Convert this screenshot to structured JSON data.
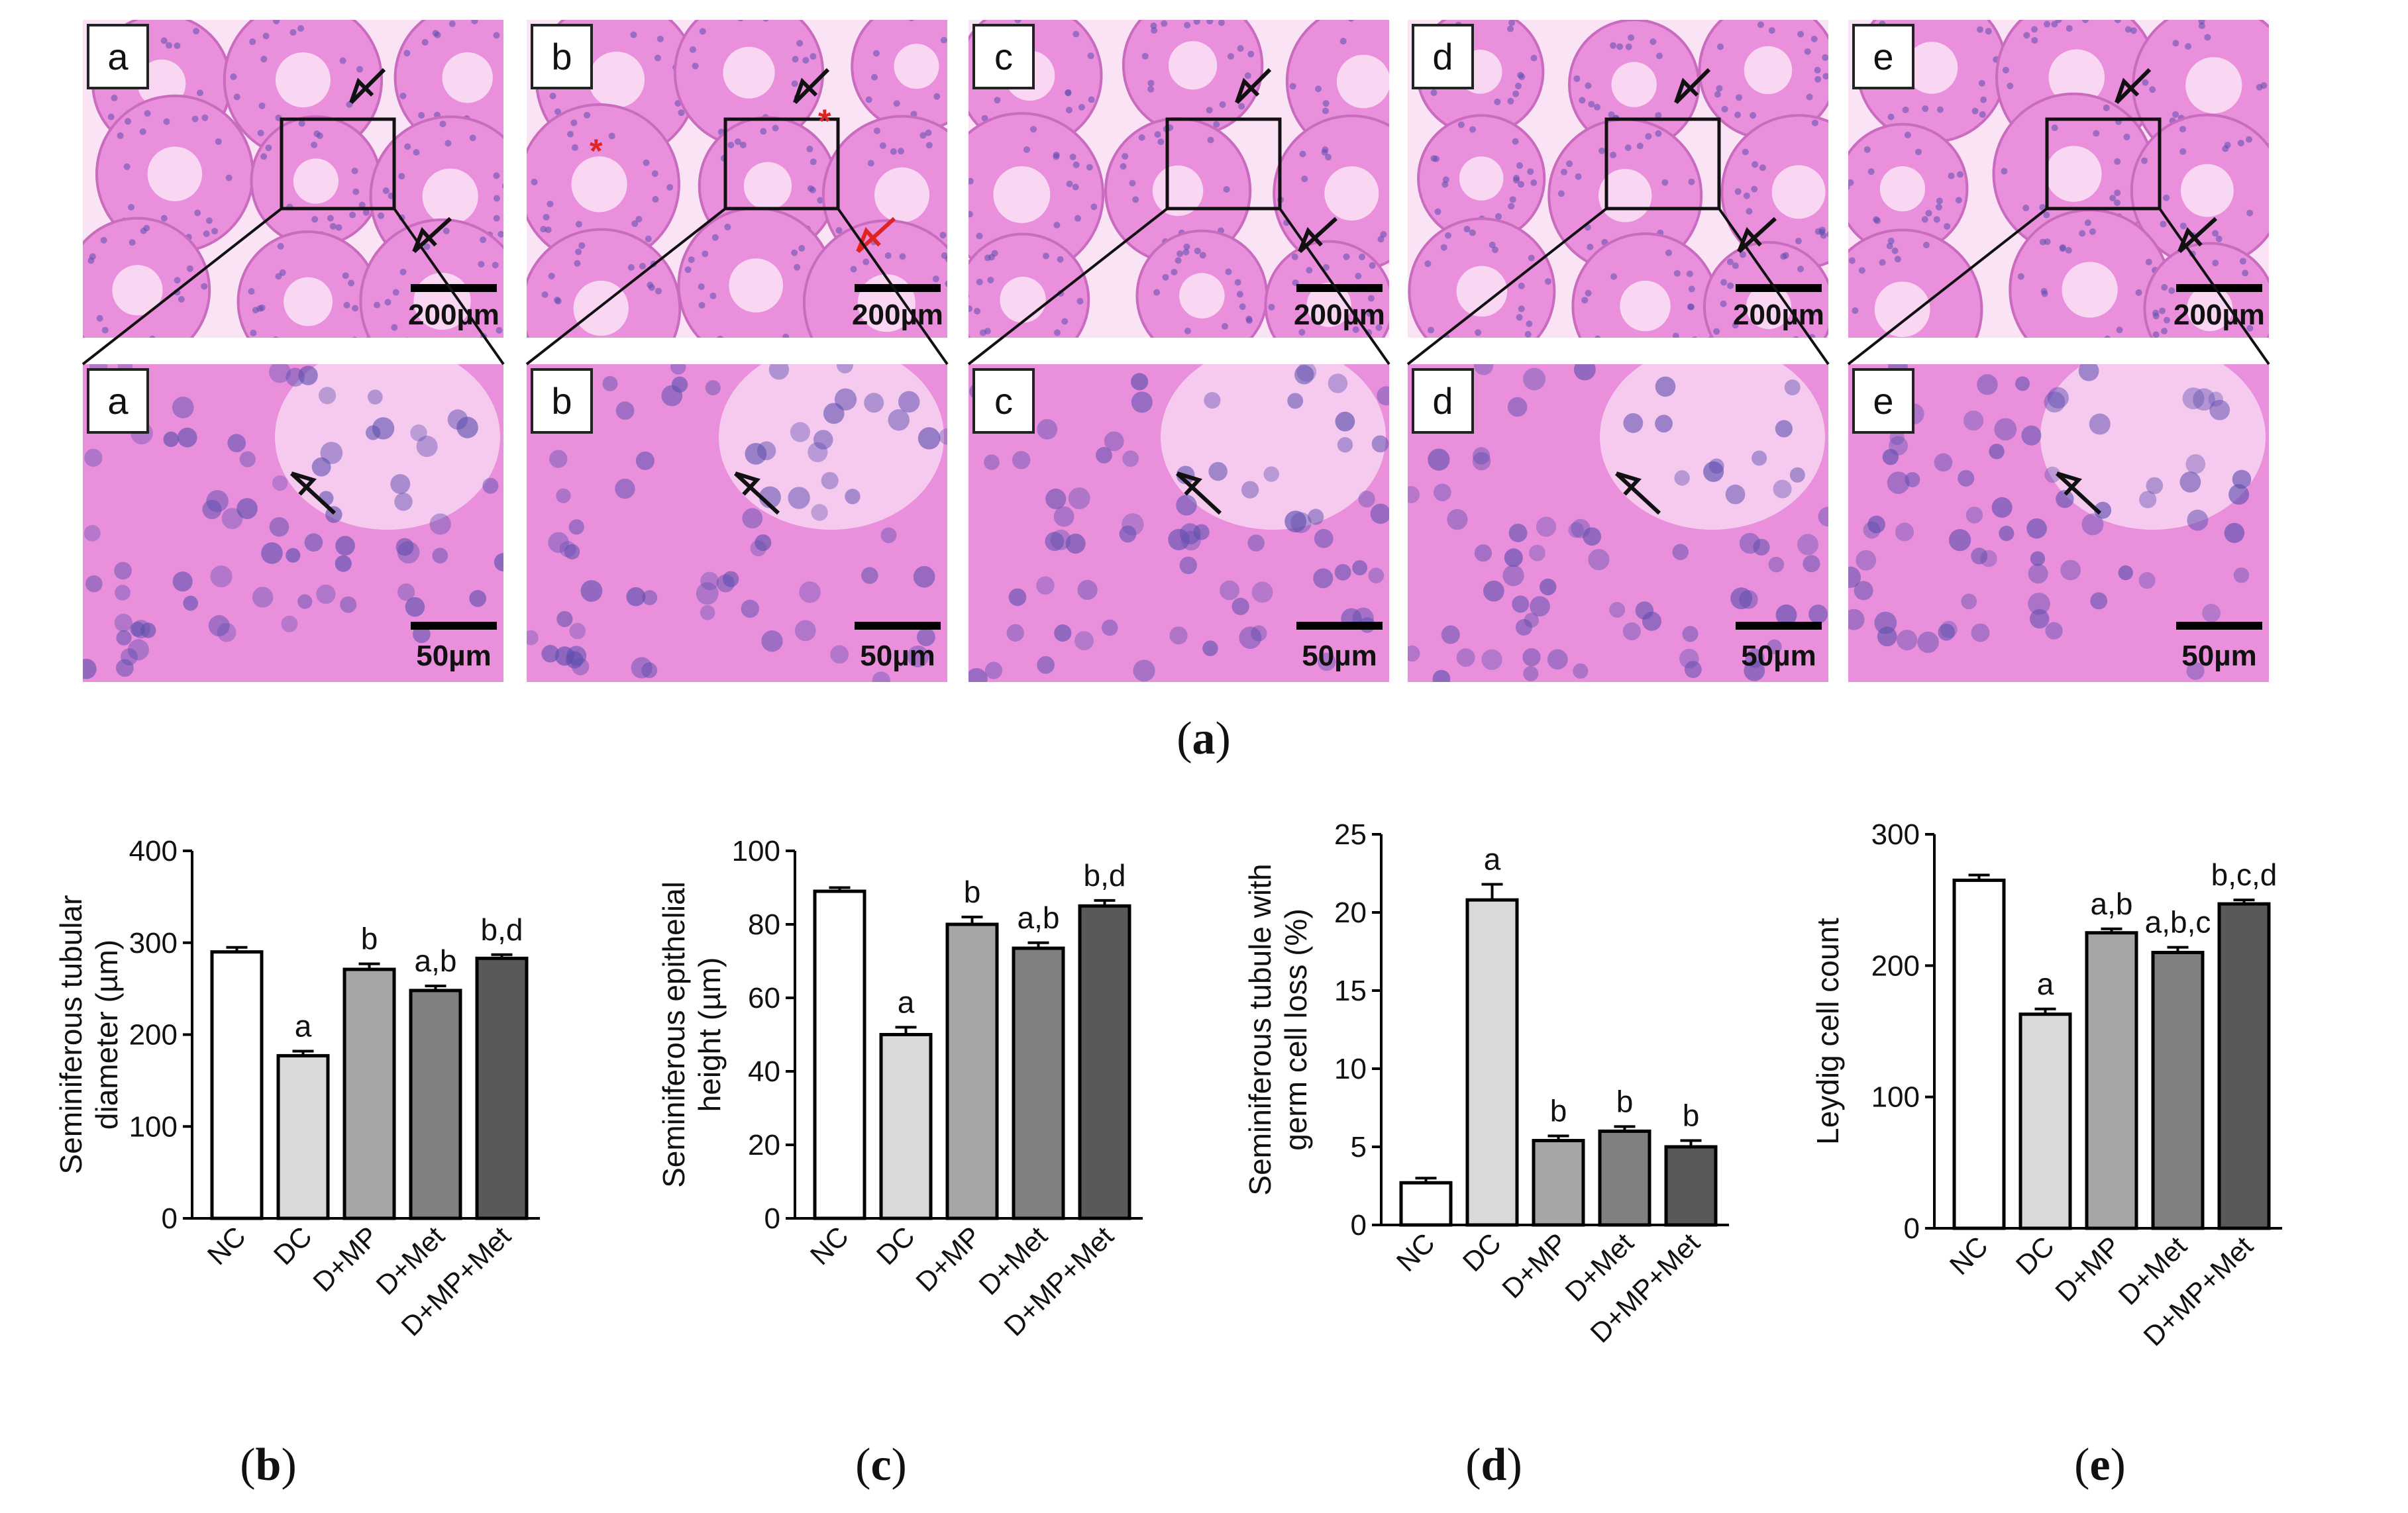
{
  "histology": {
    "panel_label": "a",
    "columns": [
      {
        "letter": "a",
        "scale_top": "200µm",
        "scale_bottom": "50µm",
        "red_markers": false
      },
      {
        "letter": "b",
        "scale_top": "200µm",
        "scale_bottom": "50µm",
        "red_markers": true
      },
      {
        "letter": "c",
        "scale_top": "200µm",
        "scale_bottom": "50µm",
        "red_markers": false
      },
      {
        "letter": "d",
        "scale_top": "200µm",
        "scale_bottom": "50µm",
        "red_markers": false
      },
      {
        "letter": "e",
        "scale_top": "200µm",
        "scale_bottom": "50µm",
        "red_markers": false
      }
    ],
    "colors": {
      "tissue": "#e98fdc",
      "lumen": "#fbe3f6",
      "nuclei": "#5d4fae",
      "arrow": "#111111",
      "red_arrow": "#e02424"
    }
  },
  "chart_data": [
    {
      "type": "bar",
      "panel": "b",
      "ylabel": [
        "Seminiferous tubular",
        "diameter (µm)"
      ],
      "categories": [
        "NC",
        "DC",
        "D+MP",
        "D+Met",
        "D+MP+Met"
      ],
      "values": [
        290,
        177,
        271,
        248,
        283
      ],
      "errors": [
        5,
        5,
        6,
        5,
        4
      ],
      "annotations": [
        "",
        "a",
        "b",
        "a,b",
        "b,d"
      ],
      "ylim": [
        0,
        400
      ],
      "yticks": [
        0,
        100,
        200,
        300,
        400
      ],
      "colors": [
        "#ffffff",
        "#d9d9d9",
        "#a6a6a6",
        "#808080",
        "#595959"
      ]
    },
    {
      "type": "bar",
      "panel": "c",
      "ylabel": [
        "Seminiferous epithelial",
        "height (µm)"
      ],
      "categories": [
        "NC",
        "DC",
        "D+MP",
        "D+Met",
        "D+MP+Met"
      ],
      "values": [
        89,
        50,
        80,
        73.5,
        85
      ],
      "errors": [
        1,
        2,
        2,
        1.5,
        1.5
      ],
      "annotations": [
        "",
        "a",
        "b",
        "a,b",
        "b,d"
      ],
      "ylim": [
        0,
        100
      ],
      "yticks": [
        0,
        20,
        40,
        60,
        80,
        100
      ],
      "colors": [
        "#ffffff",
        "#d9d9d9",
        "#a6a6a6",
        "#808080",
        "#595959"
      ]
    },
    {
      "type": "bar",
      "panel": "d",
      "ylabel": [
        "Seminiferous tubule with",
        "germ cell loss (%)"
      ],
      "categories": [
        "NC",
        "DC",
        "D+MP",
        "D+Met",
        "D+MP+Met"
      ],
      "values": [
        2.7,
        20.8,
        5.4,
        6.0,
        5.0
      ],
      "errors": [
        0.3,
        1.0,
        0.3,
        0.3,
        0.4
      ],
      "annotations": [
        "",
        "a",
        "b",
        "b",
        "b"
      ],
      "ylim": [
        0,
        25
      ],
      "yticks": [
        0,
        5,
        10,
        15,
        20,
        25
      ],
      "colors": [
        "#ffffff",
        "#d9d9d9",
        "#a6a6a6",
        "#808080",
        "#595959"
      ]
    },
    {
      "type": "bar",
      "panel": "e",
      "ylabel": [
        "Leydig cell count"
      ],
      "categories": [
        "NC",
        "DC",
        "D+MP",
        "D+Met",
        "D+MP+Met"
      ],
      "values": [
        265,
        163,
        225,
        210,
        247
      ],
      "errors": [
        4,
        4,
        3,
        4,
        3
      ],
      "annotations": [
        "",
        "a",
        "a,b",
        "a,b,c",
        "b,c,d"
      ],
      "ylim": [
        0,
        300
      ],
      "yticks": [
        0,
        100,
        200,
        300
      ],
      "colors": [
        "#ffffff",
        "#d9d9d9",
        "#a6a6a6",
        "#808080",
        "#595959"
      ]
    }
  ]
}
